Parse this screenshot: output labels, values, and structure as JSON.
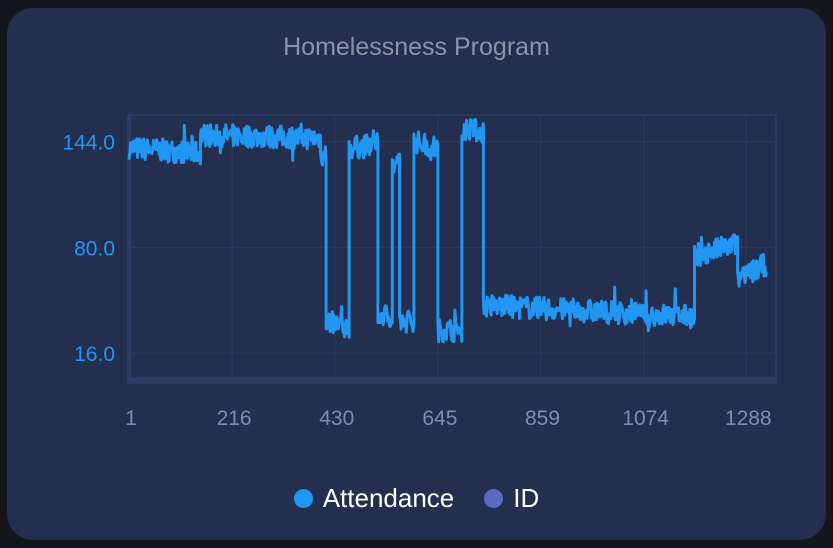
{
  "chart_data": {
    "type": "line",
    "title": "Homelessness Program",
    "xlabel": "",
    "ylabel": "",
    "x_ticks": [
      "1",
      "216",
      "430",
      "645",
      "859",
      "1074",
      "1288"
    ],
    "y_ticks": [
      "16.0",
      "80.0",
      "144.0"
    ],
    "xlim": [
      1,
      1350
    ],
    "ylim": [
      -2,
      160
    ],
    "grid": true,
    "legend_position": "bottom",
    "series": [
      {
        "name": "Attendance",
        "color": "#2196f3",
        "segments": [
          {
            "x": [
              1,
              150
            ],
            "y": [
              140,
              137
            ]
          },
          {
            "x": [
              150,
              400
            ],
            "y": [
              148,
              146
            ]
          },
          {
            "x": [
              400,
              412
            ],
            "y": [
              136,
              136
            ]
          },
          {
            "x": [
              412,
              460
            ],
            "y": [
              35,
              32
            ]
          },
          {
            "x": [
              460,
              520
            ],
            "y": [
              140,
              142
            ]
          },
          {
            "x": [
              520,
              550
            ],
            "y": [
              40,
              38
            ]
          },
          {
            "x": [
              550,
              565
            ],
            "y": [
              130,
              130
            ]
          },
          {
            "x": [
              565,
              595
            ],
            "y": [
              35,
              36
            ]
          },
          {
            "x": [
              595,
              645
            ],
            "y": [
              144,
              140
            ]
          },
          {
            "x": [
              645,
              695
            ],
            "y": [
              30,
              30
            ]
          },
          {
            "x": [
              695,
              740
            ],
            "y": [
              152,
              150
            ]
          },
          {
            "x": [
              740,
              1180
            ],
            "y": [
              45,
              38
            ]
          },
          {
            "x": [
              1180,
              1270
            ],
            "y": [
              75,
              82
            ]
          },
          {
            "x": [
              1270,
              1330
            ],
            "y": [
              60,
              70
            ]
          }
        ]
      },
      {
        "name": "ID",
        "color": "#5c6bc0",
        "hidden": true
      }
    ]
  }
}
